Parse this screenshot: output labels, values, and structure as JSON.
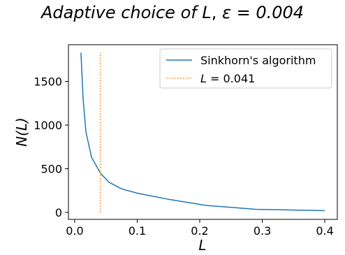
{
  "chart_data": {
    "type": "line",
    "title": {
      "prefix": "Adaptive choice of ",
      "var": "L",
      "sep": ", ",
      "eps": "ε = 0.004"
    },
    "xlabel": "L",
    "ylabel": "N(L)",
    "xlim": [
      -0.01,
      0.42
    ],
    "ylim": [
      -80,
      1920
    ],
    "xticks": [
      0.0,
      0.1,
      0.2,
      0.3,
      0.4
    ],
    "xtick_labels": [
      "0.0",
      "0.1",
      "0.2",
      "0.3",
      "0.4"
    ],
    "yticks": [
      0,
      500,
      1000,
      1500
    ],
    "ytick_labels": [
      "0",
      "500",
      "1000",
      "1500"
    ],
    "grid": false,
    "legend_position": "top-right",
    "series": [
      {
        "name": "Sinkhorn's algorithm",
        "style": "solid",
        "color": "#1f77b4",
        "x": [
          0.01,
          0.0135,
          0.018,
          0.027,
          0.041,
          0.055,
          0.075,
          0.1,
          0.15,
          0.21,
          0.29,
          0.4
        ],
        "y": [
          1830,
          1300,
          920,
          630,
          450,
          345,
          270,
          220,
          150,
          80,
          35,
          20
        ]
      }
    ],
    "vline": {
      "name": "L = 0.041",
      "label_var": "L",
      "label_rest": " = 0.041",
      "x": 0.041,
      "y_range": [
        0,
        1830
      ],
      "style": "dotted",
      "color": "#ff7f0e"
    }
  }
}
